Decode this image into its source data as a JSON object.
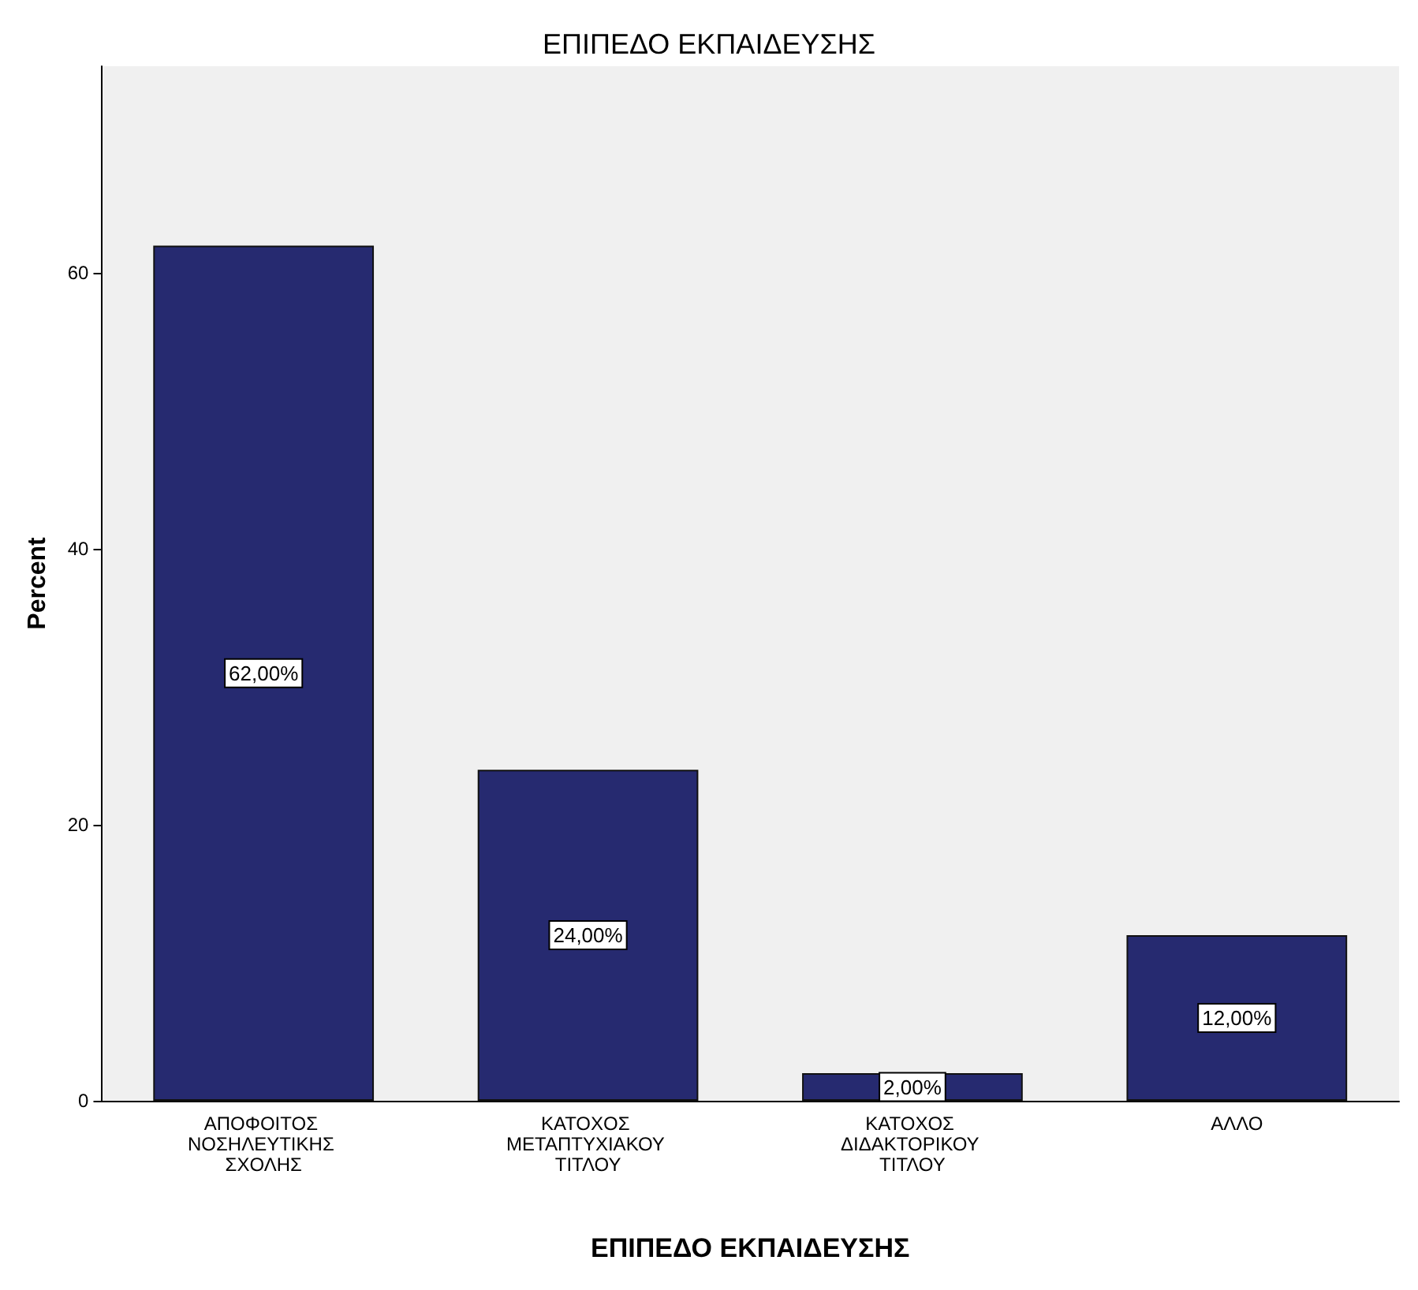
{
  "chart_data": {
    "type": "bar",
    "title": "ΕΠΙΠΕΔΟ ΕΚΠΑΙΔΕΥΣΗΣ",
    "xlabel": "ΕΠΙΠΕΔΟ ΕΚΠΑΙΔΕΥΣΗΣ",
    "ylabel": "Percent",
    "categories": [
      "ΑΠΟΦΟΙΤΟΣ ΝΟΣΗΛΕΥΤΙΚΗΣ ΣΧΟΛΗΣ",
      "ΚΑΤΟΧΟΣ ΜΕΤΑΠΤΥΧΙΑΚΟΥ ΤΙΤΛΟΥ",
      "ΚΑΤΟΧΟΣ ΔΙΔΑΚΤΟΡΙΚΟΥ ΤΙΤΛΟΥ",
      "ΑΛΛΟ"
    ],
    "values": [
      62,
      24,
      2,
      12
    ],
    "value_labels": [
      "62,00%",
      "24,00%",
      "2,00%",
      "12,00%"
    ],
    "color": "#262a70",
    "ylim": [
      0,
      75
    ],
    "yticks": [
      0,
      20,
      40,
      60
    ],
    "grid": false
  }
}
